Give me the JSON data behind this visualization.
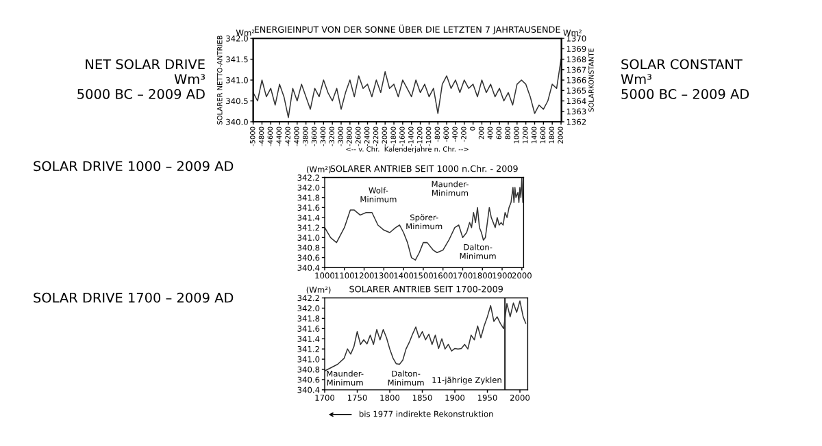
{
  "chart_data": [
    {
      "type": "line",
      "title": "ENERGIEINPUT VON DER SONNE ÜBER DIE LETZTEN 7 JAHRTAUSENDE",
      "ylabel": "SOLARER NETTO-ANTRIEB",
      "y2label": "SOLARKONSTANTE",
      "xlabel": "<-- v. Chr.  Kalenderjahre n. Chr. -->",
      "x": [
        -5000,
        -4900,
        -4800,
        -4700,
        -4600,
        -4500,
        -4400,
        -4300,
        -4200,
        -4100,
        -4000,
        -3900,
        -3800,
        -3700,
        -3600,
        -3500,
        -3400,
        -3300,
        -3200,
        -3100,
        -3000,
        -2900,
        -2800,
        -2700,
        -2600,
        -2500,
        -2400,
        -2300,
        -2200,
        -2100,
        -2000,
        -1900,
        -1800,
        -1700,
        -1600,
        -1500,
        -1400,
        -1300,
        -1200,
        -1100,
        -1000,
        -900,
        -800,
        -700,
        -600,
        -500,
        -400,
        -300,
        -200,
        -100,
        0,
        100,
        200,
        300,
        400,
        500,
        600,
        700,
        800,
        900,
        1000,
        1100,
        1200,
        1300,
        1400,
        1500,
        1600,
        1700,
        1800,
        1900,
        2000,
        2009
      ],
      "series": [
        {
          "color": "#333333",
          "values": [
            340.7,
            340.5,
            341.0,
            340.6,
            340.8,
            340.4,
            340.9,
            340.6,
            340.1,
            340.8,
            340.5,
            340.9,
            340.6,
            340.3,
            340.8,
            340.6,
            341.0,
            340.7,
            340.5,
            340.8,
            340.3,
            340.7,
            341.0,
            340.6,
            341.1,
            340.8,
            340.9,
            340.6,
            341.0,
            340.7,
            341.2,
            340.8,
            340.9,
            340.6,
            341.0,
            340.8,
            340.6,
            341.0,
            340.7,
            340.9,
            340.6,
            340.8,
            340.2,
            340.9,
            341.1,
            340.8,
            341.0,
            340.7,
            341.0,
            340.8,
            340.9,
            340.6,
            341.0,
            340.7,
            340.9,
            340.6,
            340.8,
            340.5,
            340.7,
            340.4,
            340.9,
            341.0,
            340.9,
            340.6,
            340.2,
            340.4,
            340.3,
            340.5,
            340.9,
            340.8,
            341.5,
            341.3
          ]
        }
      ],
      "xlim": [
        -5000,
        2009
      ],
      "xticks": [
        -5000,
        -4800,
        -4600,
        -4400,
        -4200,
        -4000,
        -3800,
        -3600,
        -3400,
        -3200,
        -3000,
        -2800,
        -2600,
        -2400,
        -2200,
        -2000,
        -1800,
        -1600,
        -1400,
        -1200,
        -1000,
        -800,
        -600,
        -400,
        -200,
        0,
        200,
        400,
        600,
        800,
        1000,
        1200,
        1400,
        1600,
        1800,
        2000
      ],
      "ylim": [
        340.0,
        342.0
      ],
      "yticks": [
        {
          "value": 340.0,
          "label": "340.0"
        },
        340.5,
        {
          "value": 341.0,
          "label": "341.0"
        },
        341.5,
        {
          "value": 342.0,
          "label": "342.0"
        }
      ],
      "y2lim": [
        1362,
        1370
      ],
      "y2ticks": [
        1362,
        1363,
        1364,
        1365,
        1366,
        1367,
        1368,
        1369,
        1370
      ],
      "annotations": [
        "NET SOLAR DRIVE\nWm³\n5000 BC – 2009 AD",
        "SOLAR CONSTANT\nWm³\n5000 BC – 2009 AD",
        "Wm²",
        "Wm²"
      ]
    },
    {
      "type": "line",
      "title": "SOLARER ANTRIEB SEIT 1000 n.Chr. - 2009",
      "ylabel": "(Wm²)",
      "x": [
        1000,
        1030,
        1060,
        1100,
        1130,
        1150,
        1180,
        1210,
        1240,
        1270,
        1300,
        1330,
        1360,
        1380,
        1400,
        1420,
        1440,
        1460,
        1480,
        1500,
        1520,
        1550,
        1570,
        1600,
        1630,
        1660,
        1680,
        1700,
        1720,
        1735,
        1745,
        1755,
        1765,
        1775,
        1785,
        1795,
        1805,
        1815,
        1825,
        1835,
        1845,
        1855,
        1865,
        1875,
        1885,
        1895,
        1905,
        1915,
        1925,
        1935,
        1945,
        1955,
        1960,
        1965,
        1970,
        1980,
        1985,
        1990,
        1995,
        2000,
        2005
      ],
      "series": [
        {
          "color": "#333333",
          "values": [
            341.2,
            341.0,
            340.9,
            341.2,
            341.55,
            341.55,
            341.45,
            341.5,
            341.5,
            341.25,
            341.15,
            341.1,
            341.2,
            341.25,
            341.1,
            340.9,
            340.6,
            340.55,
            340.7,
            340.9,
            340.9,
            340.75,
            340.7,
            340.75,
            340.95,
            341.2,
            341.25,
            341.0,
            341.1,
            341.3,
            341.2,
            341.5,
            341.3,
            341.6,
            341.2,
            341.1,
            340.95,
            341.0,
            341.3,
            341.6,
            341.4,
            341.3,
            341.2,
            341.4,
            341.25,
            341.3,
            341.25,
            341.5,
            341.4,
            341.6,
            341.7,
            342.0,
            341.7,
            342.0,
            341.8,
            341.9,
            341.7,
            342.0,
            341.8,
            342.2,
            341.7
          ]
        }
      ],
      "xlim": [
        1000,
        2009
      ],
      "xticks": [
        1000,
        1100,
        1200,
        1300,
        1400,
        1500,
        1600,
        1700,
        1800,
        1900,
        2000
      ],
      "ylim": [
        340.4,
        342.2
      ],
      "yticks": [
        340.4,
        340.6,
        340.8,
        {
          "value": 341.0,
          "label": "341.0"
        },
        341.2,
        341.4,
        341.6,
        341.8,
        {
          "value": 342.0,
          "label": "342.0"
        },
        342.2
      ],
      "annotations": [
        "SOLAR DRIVE 1000 – 2009 AD",
        "Wolf-\nMinimum",
        "Spörer-\nMinimum",
        "Maunder-\nMinimum",
        "Dalton-\nMinimum"
      ]
    },
    {
      "type": "line",
      "title": "SOLARER ANTRIEB SEIT 1700-2009",
      "ylabel": "(Wm²)",
      "x": [
        1700,
        1720,
        1730,
        1735,
        1740,
        1745,
        1750,
        1755,
        1760,
        1765,
        1770,
        1775,
        1780,
        1785,
        1790,
        1795,
        1800,
        1805,
        1810,
        1815,
        1820,
        1825,
        1830,
        1835,
        1840,
        1845,
        1850,
        1855,
        1860,
        1865,
        1870,
        1875,
        1880,
        1885,
        1890,
        1895,
        1900,
        1905,
        1910,
        1915,
        1920,
        1925,
        1930,
        1935,
        1940,
        1945,
        1950,
        1955,
        1960,
        1965,
        1970,
        1975,
        1980,
        1985,
        1990,
        1995,
        2000,
        2005,
        2009
      ],
      "series": [
        {
          "color": "#333333",
          "values": [
            340.77,
            340.9,
            341.02,
            341.2,
            341.1,
            341.25,
            341.54,
            341.29,
            341.38,
            341.3,
            341.47,
            341.29,
            341.58,
            341.38,
            341.58,
            341.42,
            341.2,
            341.02,
            340.91,
            340.9,
            340.98,
            341.2,
            341.33,
            341.49,
            341.63,
            341.42,
            341.54,
            341.38,
            341.49,
            341.29,
            341.47,
            341.21,
            341.4,
            341.2,
            341.29,
            341.16,
            341.21,
            341.2,
            341.21,
            341.29,
            341.2,
            341.47,
            341.38,
            341.65,
            341.42,
            341.65,
            341.83,
            342.05,
            341.74,
            341.83,
            341.7,
            341.6,
            342.09,
            341.83,
            342.1,
            341.92,
            342.14,
            341.83,
            341.7
          ]
        }
      ],
      "xlim": [
        1700,
        2012
      ],
      "xticks": [
        1700,
        1750,
        1800,
        1850,
        1900,
        1950,
        2000
      ],
      "ylim": [
        340.4,
        342.2
      ],
      "yticks": [
        340.4,
        340.6,
        340.8,
        {
          "value": 341.0,
          "label": "341.0"
        },
        341.2,
        341.4,
        341.6,
        341.8,
        {
          "value": 342.0,
          "label": "342.0"
        },
        342.2
      ],
      "ref_lines": [
        {
          "axis": "x",
          "value": 1977,
          "color": "#333333"
        }
      ],
      "annotations": [
        "SOLAR DRIVE 1700 – 2009 AD",
        "Maunder-\nMinimum",
        "Dalton-\nMinimum",
        "11-jährige Zyklen",
        "bis 1977 indirekte Rekonstruktion"
      ]
    }
  ]
}
